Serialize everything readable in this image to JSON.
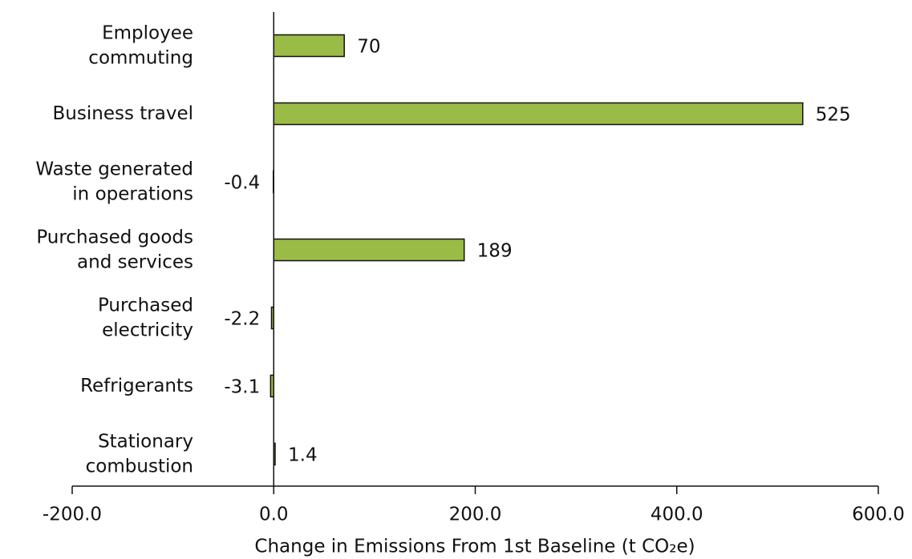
{
  "chart_data": {
    "type": "hbar",
    "x_label": "Change in Emissions From 1st Baseline (t CO₂e)",
    "categories": [
      "Employee\ncommuting",
      "Business travel",
      "Waste generated\nin operations",
      "Purchased goods\nand services",
      "Purchased\nelectricity",
      "Refrigerants",
      "Stationary\ncombustion"
    ],
    "values": [
      70,
      525,
      -0.4,
      189,
      -2.2,
      -3.1,
      1.4
    ],
    "color": "#9bbb47",
    "xlim": [
      -200,
      600
    ],
    "xticks": [
      {
        "value": -200,
        "label": "-200.0"
      },
      {
        "value": 0,
        "label": "0.0"
      },
      {
        "value": 200,
        "label": "200.0"
      },
      {
        "value": 400,
        "label": "400.0"
      },
      {
        "value": 600,
        "label": "600.0"
      }
    ]
  }
}
